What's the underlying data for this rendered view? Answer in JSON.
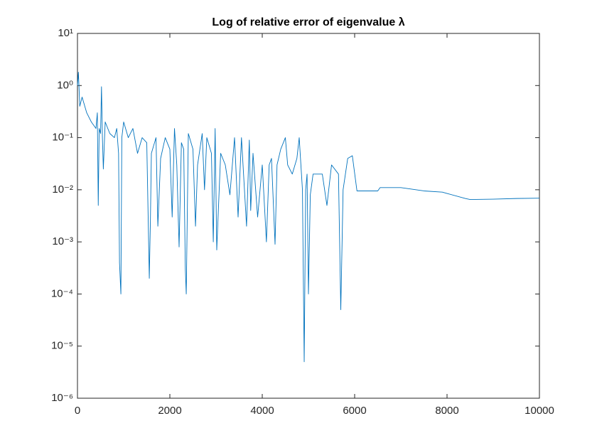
{
  "chart_data": {
    "type": "line",
    "title": "Log of relative error of eigenvalue λ",
    "color": "#0072bd",
    "log_y": true,
    "grid": false,
    "x": [
      0,
      20,
      50,
      100,
      200,
      300,
      400,
      430,
      450,
      470,
      500,
      520,
      540,
      560,
      600,
      700,
      800,
      850,
      890,
      910,
      940,
      960,
      1000,
      1100,
      1200,
      1300,
      1400,
      1500,
      1555,
      1580,
      1600,
      1700,
      1740,
      1800,
      1900,
      2000,
      2050,
      2100,
      2150,
      2200,
      2250,
      2300,
      2335,
      2355,
      2400,
      2500,
      2555,
      2600,
      2700,
      2750,
      2800,
      2900,
      2940,
      2980,
      3015,
      3100,
      3200,
      3300,
      3400,
      3477,
      3550,
      3660,
      3720,
      3750,
      3800,
      3900,
      4000,
      4090,
      4150,
      4200,
      4277,
      4320,
      4400,
      4500,
      4550,
      4650,
      4750,
      4800,
      4870,
      4908,
      4940,
      4970,
      5000,
      5040,
      5100,
      5300,
      5400,
      5500,
      5650,
      5700,
      5750,
      5850,
      5950,
      6050,
      6500,
      6550,
      7000,
      7500,
      7900,
      8000,
      8400,
      8500,
      9000,
      9500,
      10000
    ],
    "values": [
      1.0,
      1.8,
      0.4,
      0.6,
      0.3,
      0.2,
      0.15,
      0.3,
      0.005,
      0.15,
      0.12,
      0.95,
      0.1,
      0.025,
      0.2,
      0.12,
      0.1,
      0.15,
      0.05,
      0.0004,
      0.0001,
      0.1,
      0.2,
      0.1,
      0.15,
      0.05,
      0.1,
      0.08,
      0.0002,
      0.003,
      0.05,
      0.1,
      0.002,
      0.04,
      0.1,
      0.06,
      0.003,
      0.15,
      0.03,
      0.0008,
      0.08,
      0.06,
      0.0003,
      0.0001,
      0.12,
      0.06,
      0.002,
      0.03,
      0.12,
      0.01,
      0.1,
      0.05,
      0.001,
      0.15,
      0.0007,
      0.05,
      0.03,
      0.008,
      0.1,
      0.003,
      0.1,
      0.002,
      0.09,
      0.004,
      0.05,
      0.003,
      0.03,
      0.001,
      0.03,
      0.04,
      0.0009,
      0.03,
      0.06,
      0.1,
      0.03,
      0.02,
      0.04,
      0.1,
      0.01,
      5e-06,
      0.01,
      0.02,
      0.0001,
      0.008,
      0.02,
      0.02,
      0.005,
      0.03,
      0.02,
      5e-05,
      0.01,
      0.04,
      0.045,
      0.0095,
      0.0095,
      0.011,
      0.011,
      0.0095,
      0.009,
      0.0085,
      0.0068,
      0.0065,
      0.0066,
      0.0068,
      0.0069
    ],
    "xlim": [
      0,
      10000
    ],
    "xticks": [
      0,
      2000,
      4000,
      6000,
      8000,
      10000
    ],
    "ylim": [
      1e-06,
      10
    ],
    "yticks": [
      {
        "value": 1e-06,
        "label": "10⁻⁶"
      },
      {
        "value": 1e-05,
        "label": "10⁻⁵"
      },
      {
        "value": 0.0001,
        "label": "10⁻⁴"
      },
      {
        "value": 0.001,
        "label": "10⁻³"
      },
      {
        "value": 0.01,
        "label": "10⁻²"
      },
      {
        "value": 0.1,
        "label": "10⁻¹"
      },
      {
        "value": 1,
        "label": "10⁰"
      },
      {
        "value": 10,
        "label": "10¹"
      }
    ]
  }
}
